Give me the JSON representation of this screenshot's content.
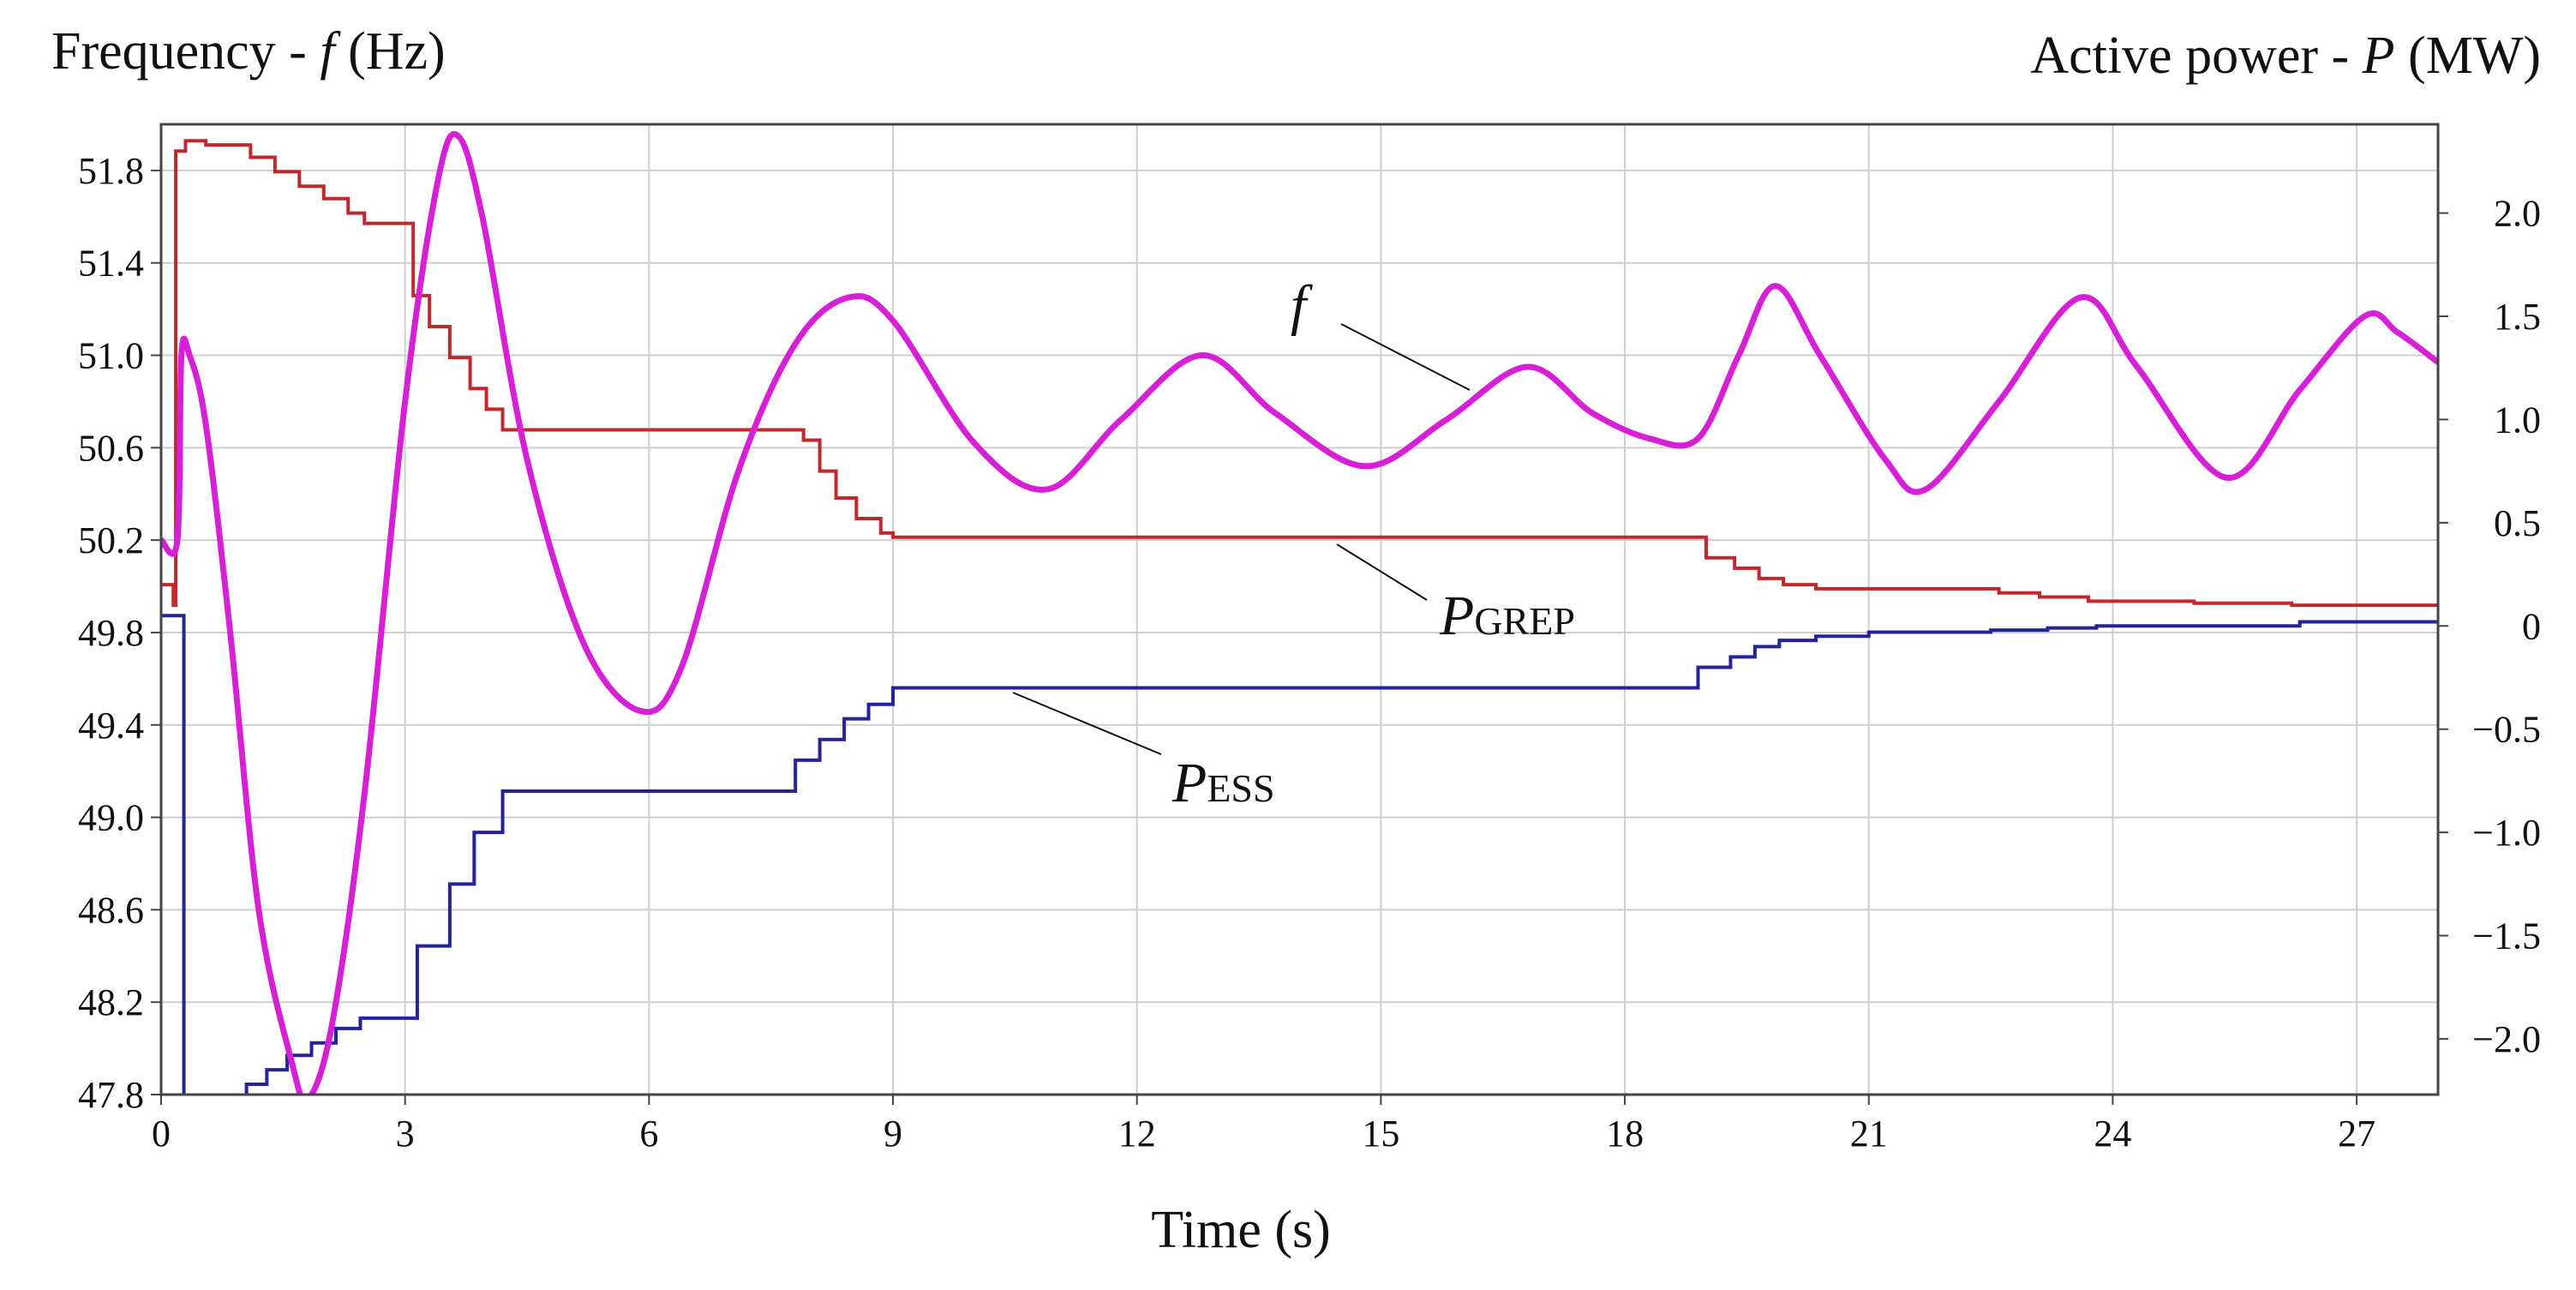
{
  "chart_data": {
    "type": "line",
    "left_axis_label_text": "Frequency - ",
    "left_axis_label_symbol": "f",
    "left_axis_label_unit": " (Hz)",
    "right_axis_label_text": "Active power - ",
    "right_axis_label_symbol": "P",
    "right_axis_label_unit": " (MW)",
    "xlabel": "Time (s)",
    "x_ticks": [
      0,
      3,
      6,
      9,
      12,
      15,
      18,
      21,
      24,
      27
    ],
    "xlim": [
      0,
      28
    ],
    "left_ticks": [
      "47.8",
      "48.2",
      "48.6",
      "49.0",
      "49.4",
      "49.8",
      "50.2",
      "50.6",
      "51.0",
      "51.4",
      "51.8"
    ],
    "left_ylim": [
      47.8,
      52.0
    ],
    "right_ticks": [
      "−2.0",
      "−1.5",
      "−1.0",
      "−0.5",
      "0",
      "0.5",
      "1.0",
      "1.5",
      "2.0"
    ],
    "right_tick_values": [
      -2.0,
      -1.5,
      -1.0,
      -0.5,
      0,
      0.5,
      1.0,
      1.5,
      2.0
    ],
    "right_ylim": [
      -2.27,
      2.43
    ],
    "grid": true,
    "colors": {
      "frequency": "#d81fd8",
      "grep": "#c0282d",
      "ess": "#23239b",
      "grid": "#cfcfcf"
    },
    "series": [
      {
        "name": "f",
        "axis": "left",
        "points": [
          [
            0,
            50.2
          ],
          [
            0.2,
            50.2
          ],
          [
            0.25,
            51.0
          ],
          [
            0.35,
            51.0
          ],
          [
            0.55,
            50.7
          ],
          [
            0.85,
            49.8
          ],
          [
            1.2,
            48.6
          ],
          [
            1.6,
            47.95
          ],
          [
            1.8,
            47.78
          ],
          [
            2.1,
            48.1
          ],
          [
            2.5,
            49.1
          ],
          [
            3.0,
            50.8
          ],
          [
            3.4,
            51.75
          ],
          [
            3.65,
            51.95
          ],
          [
            3.95,
            51.6
          ],
          [
            4.5,
            50.55
          ],
          [
            5.2,
            49.75
          ],
          [
            5.9,
            49.46
          ],
          [
            6.4,
            49.65
          ],
          [
            7.1,
            50.5
          ],
          [
            7.8,
            51.05
          ],
          [
            8.45,
            51.25
          ],
          [
            9.0,
            51.15
          ],
          [
            10.0,
            50.62
          ],
          [
            10.9,
            50.42
          ],
          [
            11.8,
            50.72
          ],
          [
            12.8,
            51.0
          ],
          [
            13.7,
            50.75
          ],
          [
            14.8,
            50.52
          ],
          [
            15.8,
            50.72
          ],
          [
            16.8,
            50.95
          ],
          [
            17.6,
            50.75
          ],
          [
            18.3,
            50.64
          ],
          [
            18.9,
            50.64
          ],
          [
            19.4,
            51.0
          ],
          [
            19.85,
            51.3
          ],
          [
            20.4,
            51.0
          ],
          [
            21.2,
            50.55
          ],
          [
            21.7,
            50.42
          ],
          [
            22.6,
            50.8
          ],
          [
            23.6,
            51.25
          ],
          [
            24.3,
            50.95
          ],
          [
            25.4,
            50.47
          ],
          [
            26.3,
            50.85
          ],
          [
            27.1,
            51.17
          ],
          [
            27.5,
            51.1
          ],
          [
            28.0,
            50.97
          ]
        ]
      },
      {
        "name": "PGREP",
        "label_main": "P",
        "label_sub": "GREP",
        "axis": "right",
        "steps": [
          [
            0,
            0.2
          ],
          [
            0.15,
            0.1
          ],
          [
            0.18,
            2.3
          ],
          [
            0.3,
            2.35
          ],
          [
            0.55,
            2.33
          ],
          [
            1.1,
            2.27
          ],
          [
            1.4,
            2.2
          ],
          [
            1.7,
            2.13
          ],
          [
            2.0,
            2.07
          ],
          [
            2.3,
            2.0
          ],
          [
            2.5,
            1.95
          ],
          [
            3.1,
            1.6
          ],
          [
            3.3,
            1.45
          ],
          [
            3.55,
            1.3
          ],
          [
            3.8,
            1.15
          ],
          [
            4.0,
            1.05
          ],
          [
            4.2,
            0.95
          ],
          [
            7.9,
            0.9
          ],
          [
            8.1,
            0.75
          ],
          [
            8.3,
            0.62
          ],
          [
            8.55,
            0.52
          ],
          [
            8.85,
            0.45
          ],
          [
            9.0,
            0.43
          ],
          [
            19.0,
            0.33
          ],
          [
            19.35,
            0.28
          ],
          [
            19.65,
            0.23
          ],
          [
            19.95,
            0.2
          ],
          [
            20.35,
            0.18
          ],
          [
            22.6,
            0.16
          ],
          [
            23.1,
            0.14
          ],
          [
            23.7,
            0.12
          ],
          [
            25.0,
            0.11
          ],
          [
            26.2,
            0.1
          ],
          [
            28.0,
            0.1
          ]
        ]
      },
      {
        "name": "PESS",
        "label_main": "P",
        "label_sub": "ESS",
        "axis": "right",
        "steps": [
          [
            0,
            0.05
          ],
          [
            0.28,
            -2.3
          ],
          [
            1.05,
            -2.22
          ],
          [
            1.3,
            -2.15
          ],
          [
            1.55,
            -2.08
          ],
          [
            1.85,
            -2.02
          ],
          [
            2.15,
            -1.95
          ],
          [
            2.45,
            -1.9
          ],
          [
            3.15,
            -1.55
          ],
          [
            3.55,
            -1.25
          ],
          [
            3.85,
            -1.0
          ],
          [
            4.2,
            -0.8
          ],
          [
            7.8,
            -0.65
          ],
          [
            8.1,
            -0.55
          ],
          [
            8.4,
            -0.45
          ],
          [
            8.7,
            -0.38
          ],
          [
            9.0,
            -0.3
          ],
          [
            18.9,
            -0.2
          ],
          [
            19.3,
            -0.15
          ],
          [
            19.6,
            -0.1
          ],
          [
            19.9,
            -0.07
          ],
          [
            20.35,
            -0.05
          ],
          [
            21.0,
            -0.03
          ],
          [
            22.5,
            -0.02
          ],
          [
            23.2,
            -0.01
          ],
          [
            23.8,
            0.0
          ],
          [
            24.8,
            0.0
          ],
          [
            26.3,
            0.02
          ],
          [
            28.0,
            0.02
          ]
        ]
      }
    ]
  }
}
